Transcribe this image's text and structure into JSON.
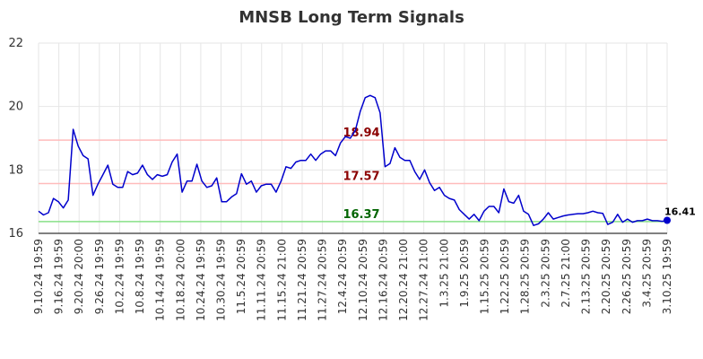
{
  "chart_data": {
    "type": "line",
    "title": "MNSB Long Term Signals",
    "xlabel": "",
    "ylabel": "",
    "ylim": [
      16,
      22
    ],
    "yticks": [
      "16",
      "18",
      "20",
      "22"
    ],
    "grid": true,
    "x_tick_labels": [
      "9.10.24 19:59",
      "9.16.24 19:59",
      "9.20.24 20:00",
      "9.26.24 19:59",
      "10.2.24 19:59",
      "10.8.24 19:59",
      "10.14.24 19:59",
      "10.18.24 20:00",
      "10.24.24 19:59",
      "10.30.24 19:59",
      "11.5.24 20:59",
      "11.11.24 20:59",
      "11.15.24 21:00",
      "11.21.24 20:59",
      "11.27.24 20:59",
      "12.4.24 20:59",
      "12.10.24 20:59",
      "12.16.24 20:59",
      "12.20.24 21:00",
      "12.27.24 21:00",
      "1.3.25 21:00",
      "1.9.25 20:59",
      "1.15.25 20:59",
      "1.22.25 20:59",
      "1.28.25 20:59",
      "2.3.25 20:59",
      "2.7.25 21:00",
      "2.13.25 20:59",
      "2.20.25 20:59",
      "2.26.25 20:59",
      "3.4.25 20:59",
      "3.10.25 19:59"
    ],
    "series": [
      {
        "color": "#0000cc",
        "values": [
          16.7,
          16.58,
          16.65,
          17.1,
          17.0,
          16.8,
          17.05,
          19.28,
          18.75,
          18.45,
          18.35,
          17.2,
          17.55,
          17.85,
          18.15,
          17.55,
          17.45,
          17.45,
          17.95,
          17.85,
          17.9,
          18.15,
          17.85,
          17.7,
          17.85,
          17.8,
          17.85,
          18.25,
          18.5,
          17.3,
          17.65,
          17.65,
          18.18,
          17.65,
          17.45,
          17.5,
          17.75,
          17.0,
          17.0,
          17.15,
          17.25,
          17.88,
          17.55,
          17.65,
          17.3,
          17.5,
          17.55,
          17.55,
          17.3,
          17.65,
          18.1,
          18.05,
          18.25,
          18.3,
          18.3,
          18.5,
          18.3,
          18.5,
          18.6,
          18.6,
          18.45,
          18.85,
          19.05,
          19.0,
          19.25,
          19.85,
          20.28,
          20.35,
          20.28,
          19.8,
          18.1,
          18.2,
          18.7,
          18.4,
          18.3,
          18.3,
          17.95,
          17.7,
          18.0,
          17.6,
          17.35,
          17.45,
          17.2,
          17.1,
          17.05,
          16.75,
          16.6,
          16.45,
          16.6,
          16.4,
          16.7,
          16.85,
          16.85,
          16.65,
          17.4,
          17.0,
          16.95,
          17.2,
          16.7,
          16.6,
          16.25,
          16.3,
          16.45,
          16.65,
          16.45,
          16.5,
          16.55,
          16.58,
          16.6,
          16.62,
          16.62,
          16.65,
          16.7,
          16.65,
          16.63,
          16.28,
          16.35,
          16.6,
          16.35,
          16.45,
          16.35,
          16.4,
          16.4,
          16.45,
          16.4,
          16.4,
          16.38,
          16.41
        ]
      }
    ],
    "levels": [
      {
        "value": 18.94,
        "label": "18.94",
        "line_color": "#ffbbbb",
        "text_color": "#8b0000"
      },
      {
        "value": 17.57,
        "label": "17.57",
        "line_color": "#ffbbbb",
        "text_color": "#8b0000"
      },
      {
        "value": 16.37,
        "label": "16.37",
        "line_color": "#88e088",
        "text_color": "#006400"
      }
    ],
    "last_value": {
      "value": 16.41,
      "label": "16.41",
      "dot_color": "#0000cc"
    }
  }
}
